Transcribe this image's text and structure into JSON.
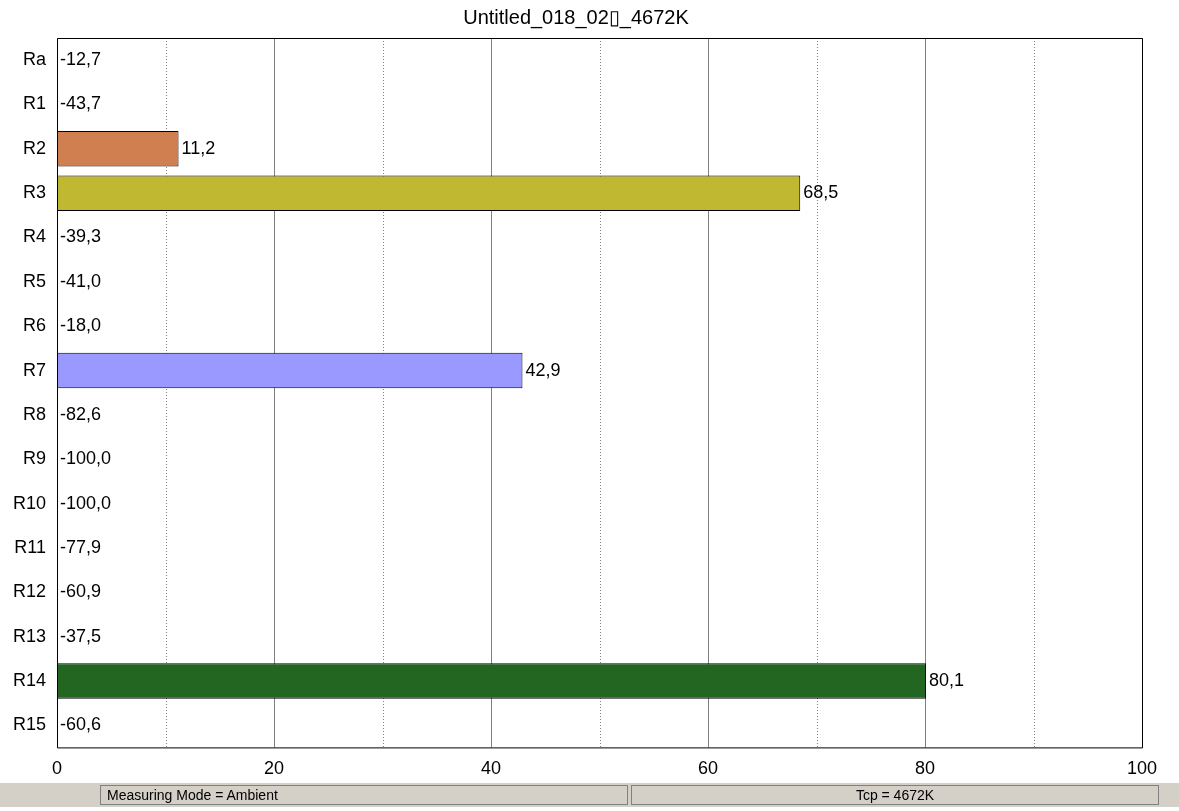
{
  "chart_data": {
    "type": "bar",
    "orientation": "horizontal",
    "title": "Untitled_018_02▯_4672K",
    "categories": [
      "Ra",
      "R1",
      "R2",
      "R3",
      "R4",
      "R5",
      "R6",
      "R7",
      "R8",
      "R9",
      "R10",
      "R11",
      "R12",
      "R13",
      "R14",
      "R15"
    ],
    "values": [
      null,
      null,
      11.2,
      68.5,
      null,
      null,
      null,
      42.9,
      null,
      null,
      null,
      null,
      null,
      null,
      80.1,
      null
    ],
    "value_labels": [
      "-12,7",
      "-43,7",
      "11,2",
      "68,5",
      "-39,3",
      "-41,0",
      "-18,0",
      "42,9",
      "-82,6",
      "-100,0",
      "-100,0",
      "-77,9",
      "-60,9",
      "-37,5",
      "80,1",
      "-60,6"
    ],
    "colors": [
      null,
      null,
      "#d08050",
      "#c0b830",
      null,
      null,
      null,
      "#9999ff",
      null,
      null,
      null,
      null,
      null,
      null,
      "#226622",
      null
    ],
    "xlim": [
      0,
      100
    ],
    "xticks": [
      0,
      {
        "value": 10,
        "label": null
      },
      20,
      {
        "value": 30,
        "label": null
      },
      40,
      {
        "value": 50,
        "label": null
      },
      60,
      {
        "value": 70,
        "label": null
      },
      80,
      {
        "value": 90,
        "label": null
      },
      100
    ],
    "grid": "x",
    "legend": false,
    "annotations": [
      "Measuring Mode = Ambient",
      "Tcp = 4672K"
    ]
  }
}
